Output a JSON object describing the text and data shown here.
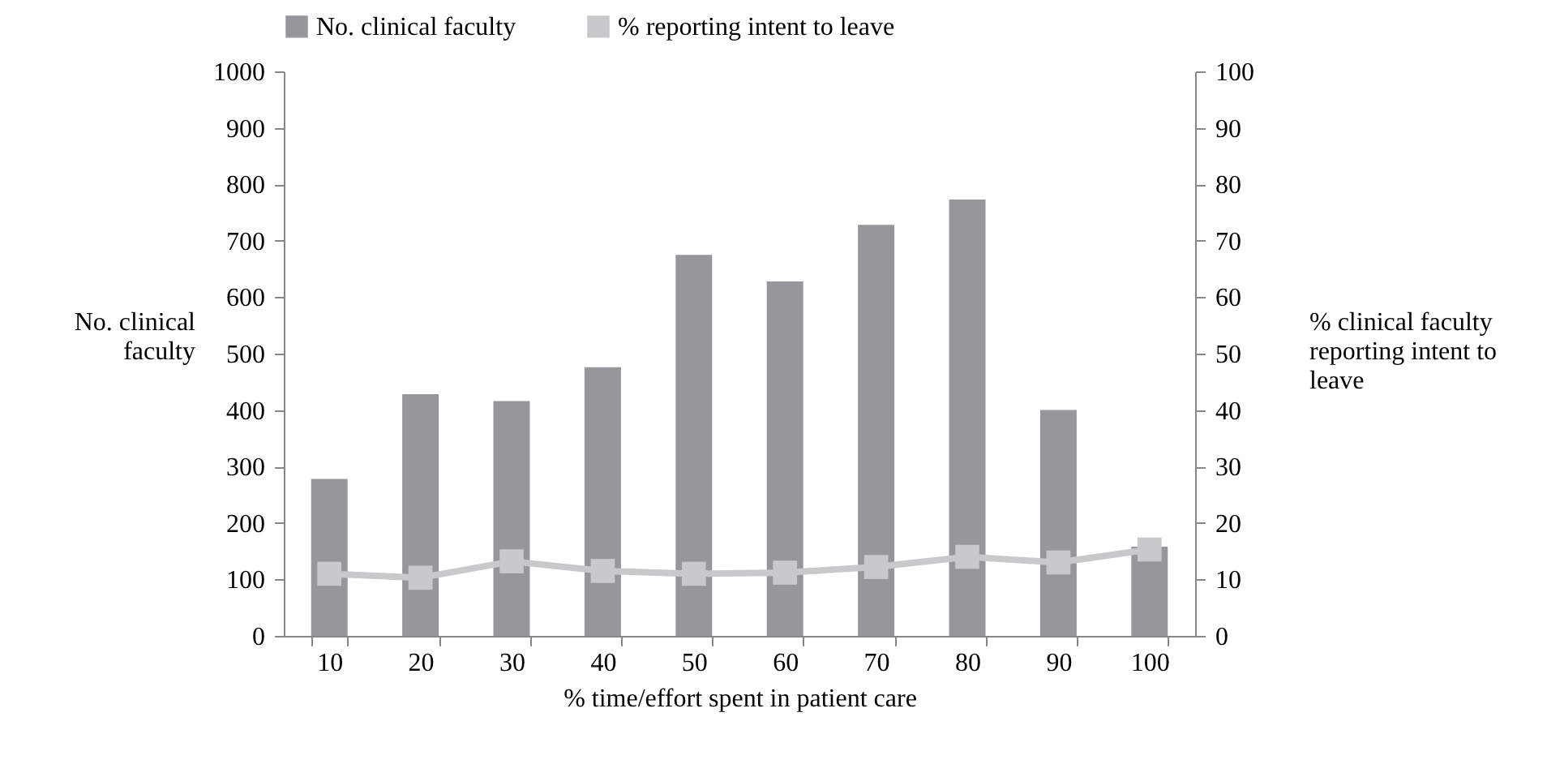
{
  "chart_data": {
    "type": "bar",
    "xlabel": "% time/effort spent in patient care",
    "ylabel": "No. clinical faculty",
    "y2label": "% clinical faculty reporting intent to leave",
    "categories": [
      "10",
      "20",
      "30",
      "40",
      "50",
      "60",
      "70",
      "80",
      "90",
      "100"
    ],
    "series": [
      {
        "name": "No. clinical faculty",
        "color": "#96979b",
        "values": [
          278,
          428,
          416,
          476,
          675,
          628,
          728,
          773,
          400,
          158
        ]
      },
      {
        "name": "% reporting intent to leave",
        "type": "line",
        "axis": "y2",
        "color": "#c8c9cb",
        "marker": "square",
        "values": [
          11,
          10.3,
          13.2,
          11.5,
          11,
          11.2,
          12.2,
          14,
          13,
          15.3
        ]
      }
    ],
    "ylim": [
      0,
      1000
    ],
    "yticks": [
      0,
      100,
      200,
      300,
      400,
      500,
      600,
      700,
      800,
      900,
      1000
    ],
    "y2lim": [
      0,
      100
    ],
    "y2ticks": [
      0,
      10,
      20,
      30,
      40,
      50,
      60,
      70,
      80,
      90,
      100
    ],
    "legend": "top",
    "grid": false
  }
}
